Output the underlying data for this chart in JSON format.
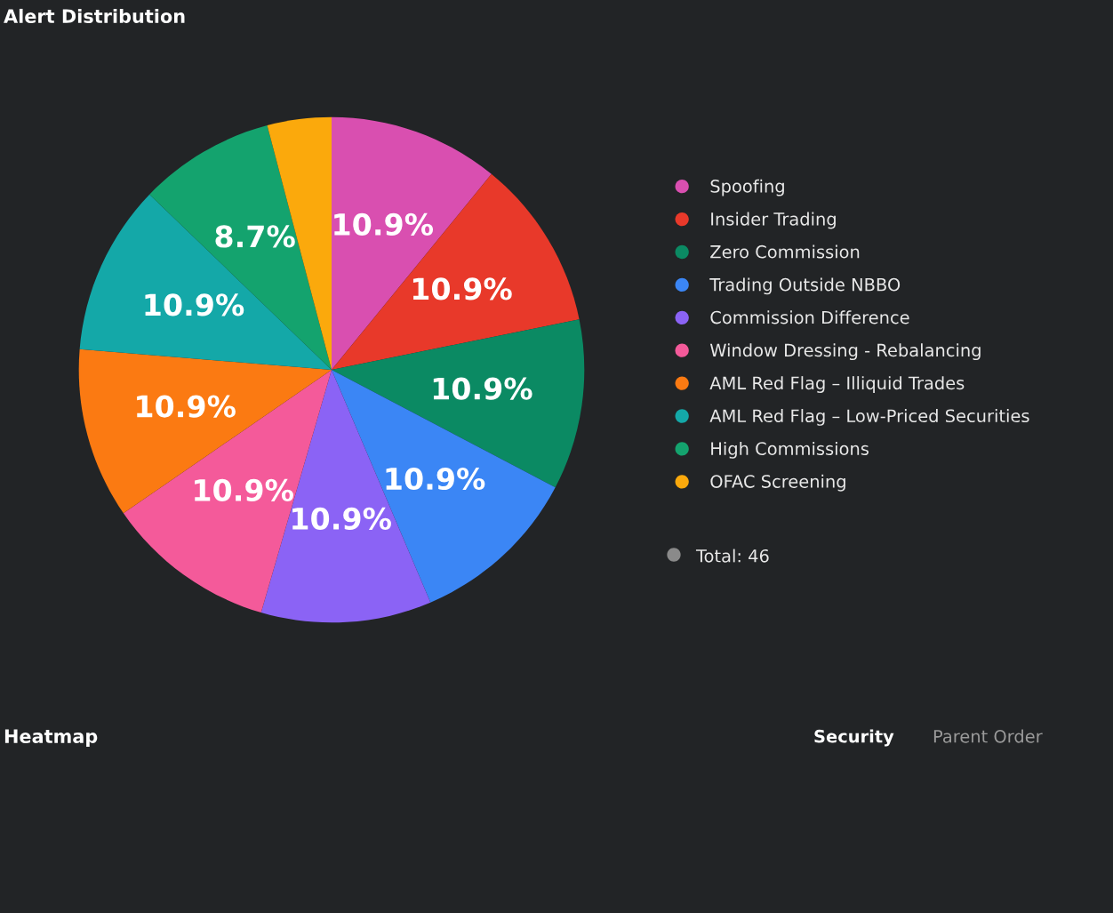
{
  "chart_data": [
    {
      "type": "pie",
      "title": "Alert Distribution",
      "categories": [
        "Spoofing",
        "Insider Trading",
        "Zero Commission",
        "Trading Outside NBBO",
        "Commission Difference",
        "Window Dressing - Rebalancing",
        "AML Red Flag – Illiquid Trades",
        "AML Red Flag – Low-Priced Securities",
        "High Commissions",
        "OFAC Screening"
      ],
      "values": [
        10.9,
        10.9,
        10.9,
        10.9,
        10.9,
        10.9,
        10.9,
        10.9,
        8.7,
        4.1
      ],
      "value_labels": [
        "10.9%",
        "10.9%",
        "10.9%",
        "10.9%",
        "10.9%",
        "10.9%",
        "10.9%",
        "10.9%",
        "8.7%",
        null
      ],
      "colors": [
        "#d94fb0",
        "#e8392a",
        "#0b8a63",
        "#3b86f5",
        "#8b63f5",
        "#f45a9a",
        "#fb7a12",
        "#14a8a8",
        "#14a36e",
        "#fba90c"
      ],
      "legend": "right",
      "annotations": [
        "Total: 46"
      ]
    },
    {
      "type": "other",
      "title": "Heatmap",
      "annotations": [
        "Security",
        "Parent Order"
      ]
    }
  ]
}
